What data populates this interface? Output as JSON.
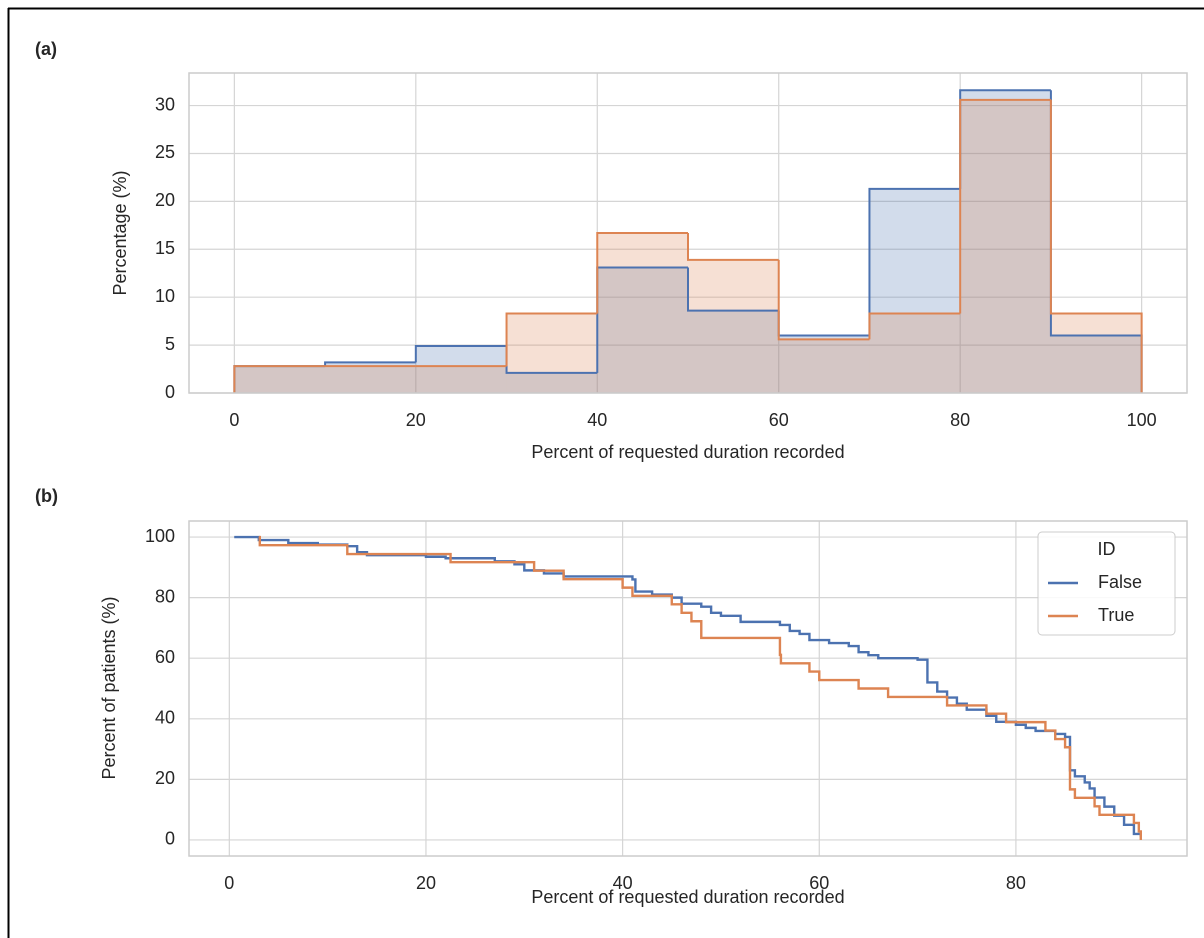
{
  "chart_data": [
    {
      "type": "histogram",
      "label": "(a)",
      "xlabel": "Percent of requested duration recorded",
      "ylabel": "Percentage (%)",
      "bins": [
        0,
        10,
        20,
        30,
        40,
        50,
        60,
        70,
        80,
        90,
        100
      ],
      "series": [
        {
          "color": "#4c72b0",
          "values": [
            2.8,
            3.2,
            4.9,
            2.1,
            13.1,
            8.6,
            6.0,
            21.3,
            31.6,
            6.0
          ]
        },
        {
          "color": "#dd8452",
          "values": [
            2.8,
            2.8,
            2.8,
            8.3,
            16.7,
            13.9,
            5.6,
            8.3,
            30.6,
            8.3
          ]
        }
      ],
      "xlim": [
        -5,
        105
      ],
      "ylim": [
        0,
        33.4
      ],
      "xticks": [
        0,
        20,
        40,
        60,
        80,
        100
      ],
      "yticks": [
        0,
        5,
        10,
        15,
        20,
        25,
        30
      ],
      "grid": true
    },
    {
      "type": "step",
      "label": "(b)",
      "xlabel": "Percent of requested duration recorded",
      "ylabel": "Percent of patients (%)",
      "legend_title": "ID",
      "legend": "upper right",
      "series": [
        {
          "name": "False",
          "color": "#4c72b0",
          "x": [
            0.5,
            3,
            6,
            9,
            12,
            13,
            14,
            20,
            22,
            27,
            29,
            30,
            32,
            34,
            41,
            41.3,
            43,
            45,
            46,
            48,
            49,
            50,
            52,
            56,
            57,
            58,
            59,
            61,
            63,
            64,
            65,
            66,
            70,
            71,
            72,
            73,
            74,
            75,
            77,
            78,
            80,
            81,
            82,
            84,
            85,
            85.5,
            86,
            87,
            87.5,
            88,
            89,
            90,
            91,
            92,
            92.7
          ],
          "values": [
            100,
            99,
            98,
            97.5,
            97,
            95,
            94,
            93.5,
            93,
            92,
            91,
            89,
            88,
            87,
            86,
            82,
            81,
            80,
            78,
            77,
            75,
            74,
            72,
            71,
            69,
            68,
            66,
            65,
            64,
            62,
            61,
            60,
            59.5,
            52,
            49,
            47,
            45,
            43,
            41,
            39,
            38,
            37,
            36,
            35,
            34,
            23,
            21,
            19,
            17,
            14,
            11,
            8,
            5,
            2,
            1
          ]
        },
        {
          "name": "True",
          "color": "#dd8452",
          "x": [
            3,
            3.1,
            12,
            22.5,
            31,
            34,
            40,
            41,
            45,
            46,
            47,
            48,
            56,
            56.1,
            59,
            60,
            64,
            67,
            73,
            77,
            79,
            83,
            84,
            85,
            85.5,
            86,
            88,
            88.5,
            92,
            92.5,
            92.7
          ],
          "values": [
            100,
            97.3,
            94.4,
            91.7,
            88.9,
            86.1,
            83.3,
            80.6,
            77.8,
            75,
            72.2,
            66.7,
            61.1,
            58.3,
            55.6,
            52.8,
            50,
            47.2,
            44.4,
            41.7,
            38.9,
            36.1,
            33.3,
            30.6,
            16.7,
            13.9,
            11.1,
            8.3,
            5.6,
            2.8,
            0
          ]
        }
      ],
      "xlim": [
        -4.1,
        97.4
      ],
      "ylim": [
        -5.3,
        105.3
      ],
      "xticks": [
        0,
        20,
        40,
        60,
        80
      ],
      "yticks": [
        0,
        20,
        40,
        60,
        80,
        100
      ],
      "grid": true
    }
  ]
}
